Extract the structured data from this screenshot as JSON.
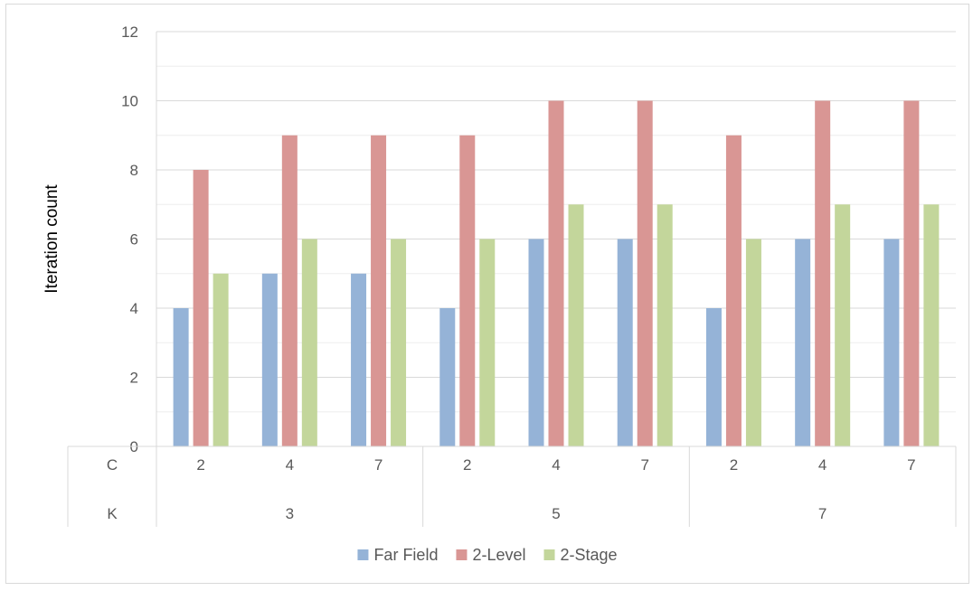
{
  "chart_data": {
    "type": "bar",
    "title": "",
    "ylabel": "Iteration count",
    "xlabel": "",
    "ylim": [
      0,
      12
    ],
    "yticks": [
      0,
      2,
      4,
      6,
      8,
      10,
      12
    ],
    "grid": true,
    "legend_position": "bottom",
    "category_levels": [
      {
        "label": "C",
        "values": [
          "2",
          "4",
          "7",
          "2",
          "4",
          "7",
          "2",
          "4",
          "7"
        ]
      },
      {
        "label": "K",
        "groups": [
          "3",
          "5",
          "7"
        ]
      }
    ],
    "series": [
      {
        "name": "Far Field",
        "color": "#95b3d7",
        "values": [
          4,
          5,
          5,
          4,
          6,
          6,
          4,
          6,
          6
        ]
      },
      {
        "name": "2-Level",
        "color": "#d99694",
        "values": [
          8,
          9,
          9,
          9,
          10,
          10,
          9,
          10,
          10
        ]
      },
      {
        "name": "2-Stage",
        "color": "#c3d69b",
        "values": [
          5,
          6,
          6,
          6,
          7,
          7,
          6,
          7,
          7
        ]
      }
    ]
  }
}
